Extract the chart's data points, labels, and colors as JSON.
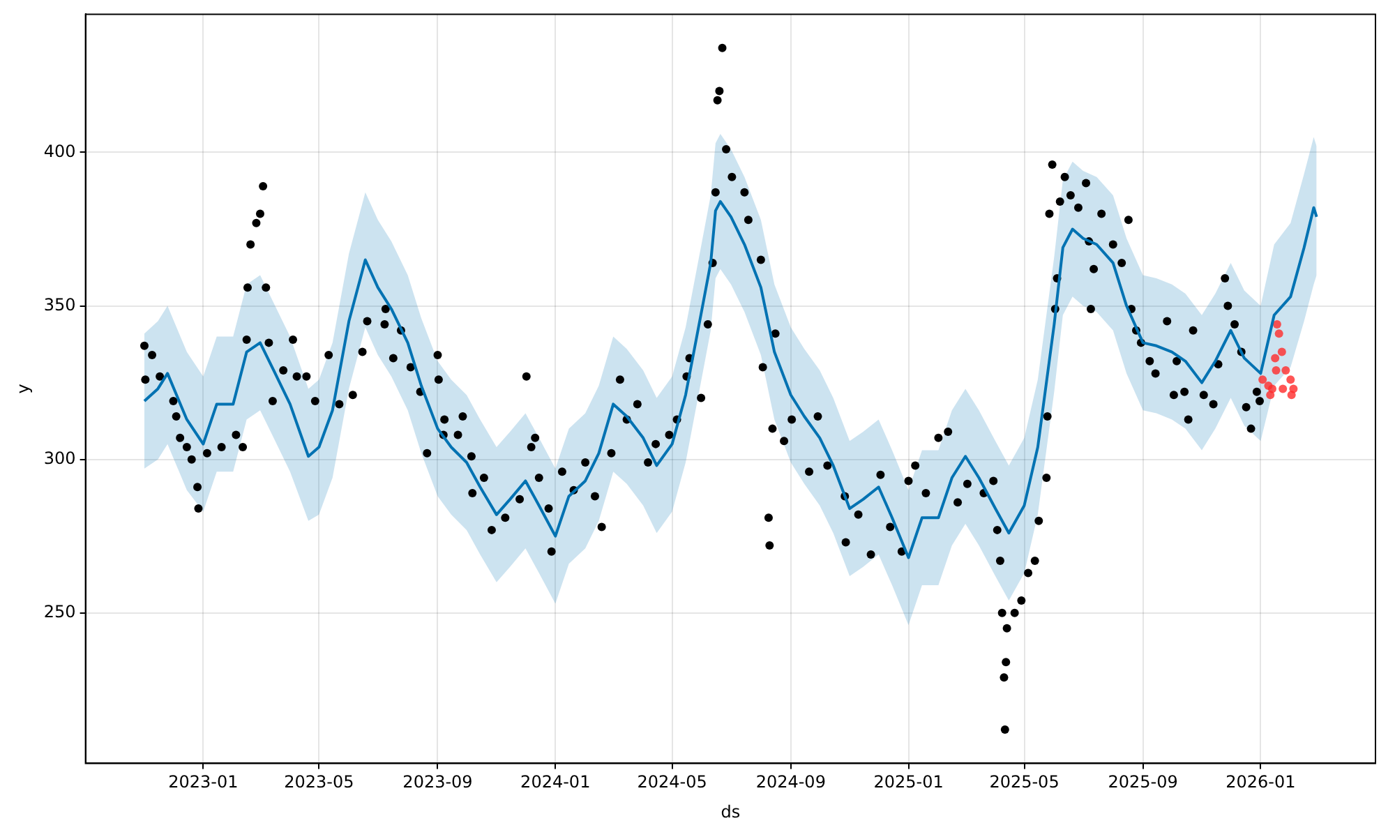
{
  "chart_data": {
    "type": "scatter",
    "xlabel": "ds",
    "ylabel": "y",
    "grid": true,
    "legend": false,
    "marker": "circle",
    "xlim": [
      "2022-09-01",
      "2026-04-30"
    ],
    "xticks": [
      "2023-01",
      "2023-05",
      "2023-09",
      "2024-01",
      "2024-05",
      "2024-09",
      "2025-01",
      "2025-05",
      "2025-09",
      "2026-01"
    ],
    "ylim": [
      201,
      445
    ],
    "yticks": [
      250,
      300,
      350,
      400
    ],
    "series": [
      {
        "type": "scatter",
        "color": "#000000",
        "x": [
          "2022-11-01",
          "2022-11-02",
          "2022-11-09",
          "2022-11-17",
          "2022-12-01",
          "2022-12-04",
          "2022-12-08",
          "2022-12-15",
          "2022-12-20",
          "2022-12-26",
          "2022-12-27",
          "2023-01-05",
          "2023-01-20",
          "2023-02-04",
          "2023-02-11",
          "2023-02-15",
          "2023-02-16",
          "2023-02-19",
          "2023-02-25",
          "2023-03-01",
          "2023-03-04",
          "2023-03-07",
          "2023-03-10",
          "2023-03-14",
          "2023-03-25",
          "2023-04-04",
          "2023-04-08",
          "2023-04-18",
          "2023-04-27",
          "2023-05-11",
          "2023-05-22",
          "2023-06-05",
          "2023-06-15",
          "2023-06-20",
          "2023-07-08",
          "2023-07-09",
          "2023-07-17",
          "2023-07-25",
          "2023-08-04",
          "2023-08-14",
          "2023-08-21",
          "2023-09-01",
          "2023-09-02",
          "2023-09-07",
          "2023-09-08",
          "2023-09-22",
          "2023-09-27",
          "2023-10-06",
          "2023-10-07",
          "2023-10-19",
          "2023-10-27",
          "2023-11-10",
          "2023-11-25",
          "2023-12-02",
          "2023-12-07",
          "2023-12-11",
          "2023-12-15",
          "2023-12-25",
          "2023-12-28",
          "2024-01-08",
          "2024-01-20",
          "2024-02-01",
          "2024-02-11",
          "2024-02-18",
          "2024-02-28",
          "2024-03-08",
          "2024-03-15",
          "2024-03-26",
          "2024-04-06",
          "2024-04-14",
          "2024-04-28",
          "2024-05-06",
          "2024-05-16",
          "2024-05-19",
          "2024-05-31",
          "2024-06-07",
          "2024-06-12",
          "2024-06-15",
          "2024-06-17",
          "2024-06-19",
          "2024-06-22",
          "2024-06-26",
          "2024-07-02",
          "2024-07-15",
          "2024-07-19",
          "2024-08-01",
          "2024-08-03",
          "2024-08-09",
          "2024-08-10",
          "2024-08-13",
          "2024-08-16",
          "2024-08-25",
          "2024-09-02",
          "2024-09-20",
          "2024-09-29",
          "2024-10-09",
          "2024-10-27",
          "2024-10-28",
          "2024-11-10",
          "2024-11-23",
          "2024-12-03",
          "2024-12-13",
          "2024-12-25",
          "2025-01-01",
          "2025-01-08",
          "2025-01-19",
          "2025-02-01",
          "2025-02-11",
          "2025-02-21",
          "2025-03-03",
          "2025-03-20",
          "2025-03-30",
          "2025-04-03",
          "2025-04-06",
          "2025-04-08",
          "2025-04-10",
          "2025-04-11",
          "2025-04-12",
          "2025-04-13",
          "2025-04-21",
          "2025-04-28",
          "2025-05-05",
          "2025-05-12",
          "2025-05-16",
          "2025-05-24",
          "2025-05-25",
          "2025-05-27",
          "2025-05-30",
          "2025-06-02",
          "2025-06-04",
          "2025-06-07",
          "2025-06-12",
          "2025-06-18",
          "2025-06-26",
          "2025-07-04",
          "2025-07-07",
          "2025-07-09",
          "2025-07-12",
          "2025-07-20",
          "2025-08-01",
          "2025-08-10",
          "2025-08-17",
          "2025-08-20",
          "2025-08-25",
          "2025-08-30",
          "2025-09-08",
          "2025-09-14",
          "2025-09-26",
          "2025-10-03",
          "2025-10-06",
          "2025-10-14",
          "2025-10-18",
          "2025-10-23",
          "2025-11-03",
          "2025-11-13",
          "2025-11-18",
          "2025-11-25",
          "2025-11-28",
          "2025-12-05",
          "2025-12-12",
          "2025-12-17",
          "2025-12-22",
          "2025-12-28",
          "2025-12-31"
        ],
        "values": [
          337,
          326,
          334,
          327,
          319,
          314,
          307,
          304,
          300,
          291,
          284,
          302,
          304,
          308,
          304,
          339,
          356,
          370,
          377,
          380,
          389,
          356,
          338,
          319,
          329,
          339,
          327,
          327,
          319,
          334,
          318,
          321,
          335,
          345,
          344,
          349,
          333,
          342,
          330,
          322,
          302,
          334,
          326,
          308,
          313,
          308,
          314,
          301,
          289,
          294,
          277,
          281,
          287,
          327,
          304,
          307,
          294,
          284,
          270,
          296,
          290,
          299,
          288,
          278,
          302,
          326,
          313,
          318,
          299,
          305,
          308,
          313,
          327,
          333,
          320,
          344,
          364,
          387,
          417,
          420,
          434,
          401,
          392,
          387,
          378,
          365,
          330,
          281,
          272,
          310,
          341,
          306,
          313,
          296,
          314,
          298,
          288,
          273,
          282,
          269,
          295,
          278,
          270,
          293,
          298,
          289,
          307,
          309,
          286,
          292,
          289,
          293,
          277,
          267,
          250,
          229,
          212,
          234,
          245,
          250,
          254,
          263,
          267,
          280,
          294,
          314,
          380,
          396,
          349,
          359,
          384,
          392,
          386,
          382,
          390,
          371,
          349,
          362,
          380,
          370,
          364,
          378,
          349,
          342,
          338,
          332,
          328,
          345,
          321,
          332,
          322,
          313,
          342,
          321,
          318,
          331,
          359,
          350,
          344,
          335,
          317,
          310,
          322,
          319
        ]
      },
      {
        "type": "scatter",
        "color": "#ff2a2a",
        "x": [
          "2026-01-03",
          "2026-01-09",
          "2026-01-11",
          "2026-01-13",
          "2026-01-16",
          "2026-01-17",
          "2026-01-18",
          "2026-01-20",
          "2026-01-23",
          "2026-01-24",
          "2026-01-27",
          "2026-02-01",
          "2026-02-02",
          "2026-02-04"
        ],
        "values": [
          326,
          324,
          321,
          323,
          333,
          329,
          344,
          341,
          335,
          323,
          329,
          326,
          321,
          323
        ]
      },
      {
        "type": "line",
        "color": "#0072b2",
        "marker": "none",
        "x": [
          "2022-11-01",
          "2022-11-15",
          "2022-11-25",
          "2022-12-15",
          "2023-01-01",
          "2023-01-15",
          "2023-02-01",
          "2023-02-15",
          "2023-03-01",
          "2023-03-15",
          "2023-04-01",
          "2023-04-20",
          "2023-05-01",
          "2023-05-15",
          "2023-06-01",
          "2023-06-18",
          "2023-07-01",
          "2023-07-15",
          "2023-08-01",
          "2023-08-15",
          "2023-09-01",
          "2023-09-15",
          "2023-10-01",
          "2023-10-15",
          "2023-11-01",
          "2023-11-15",
          "2023-12-01",
          "2023-12-15",
          "2024-01-01",
          "2024-01-15",
          "2024-02-01",
          "2024-02-15",
          "2024-03-01",
          "2024-03-15",
          "2024-04-01",
          "2024-04-15",
          "2024-05-01",
          "2024-05-15",
          "2024-06-01",
          "2024-06-10",
          "2024-06-15",
          "2024-06-20",
          "2024-07-01",
          "2024-07-15",
          "2024-08-01",
          "2024-08-15",
          "2024-09-01",
          "2024-09-15",
          "2024-10-01",
          "2024-10-15",
          "2024-11-01",
          "2024-11-15",
          "2024-12-01",
          "2024-12-15",
          "2025-01-01",
          "2025-01-15",
          "2025-02-01",
          "2025-02-15",
          "2025-03-01",
          "2025-03-15",
          "2025-04-01",
          "2025-04-15",
          "2025-05-01",
          "2025-05-15",
          "2025-06-01",
          "2025-06-10",
          "2025-06-20",
          "2025-07-01",
          "2025-07-15",
          "2025-08-01",
          "2025-08-15",
          "2025-09-01",
          "2025-09-15",
          "2025-10-01",
          "2025-10-15",
          "2025-11-01",
          "2025-11-15",
          "2025-12-01",
          "2025-12-15",
          "2026-01-01",
          "2026-01-15",
          "2026-02-01",
          "2026-02-15",
          "2026-02-25",
          "2026-02-28"
        ],
        "values": [
          319,
          323,
          328,
          313,
          305,
          318,
          318,
          335,
          338,
          329,
          318,
          301,
          304,
          316,
          345,
          365,
          356,
          349,
          338,
          324,
          310,
          304,
          299,
          291,
          282,
          287,
          293,
          285,
          275,
          288,
          293,
          302,
          318,
          314,
          307,
          298,
          305,
          321,
          349,
          364,
          381,
          384,
          379,
          370,
          356,
          335,
          321,
          314,
          307,
          298,
          284,
          287,
          291,
          281,
          268,
          281,
          281,
          294,
          301,
          294,
          284,
          276,
          285,
          304,
          344,
          369,
          375,
          372,
          370,
          364,
          350,
          338,
          337,
          335,
          332,
          325,
          332,
          342,
          333,
          328,
          347,
          353,
          369,
          382,
          379
        ],
        "lower": [
          297,
          300,
          305,
          290,
          283,
          296,
          296,
          313,
          316,
          307,
          296,
          280,
          282,
          294,
          323,
          343,
          334,
          327,
          316,
          302,
          288,
          282,
          277,
          269,
          260,
          265,
          271,
          263,
          253,
          266,
          271,
          280,
          296,
          292,
          285,
          276,
          283,
          299,
          327,
          342,
          359,
          362,
          357,
          348,
          334,
          313,
          299,
          292,
          285,
          276,
          262,
          265,
          269,
          259,
          246,
          259,
          259,
          272,
          279,
          272,
          262,
          254,
          263,
          282,
          322,
          347,
          353,
          350,
          348,
          342,
          328,
          316,
          315,
          313,
          310,
          303,
          310,
          320,
          311,
          306,
          324,
          330,
          345,
          357,
          360
        ],
        "upper": [
          341,
          345,
          350,
          335,
          327,
          340,
          340,
          357,
          360,
          351,
          340,
          323,
          326,
          338,
          367,
          387,
          378,
          371,
          360,
          346,
          332,
          326,
          321,
          313,
          304,
          309,
          315,
          307,
          297,
          310,
          315,
          324,
          340,
          336,
          329,
          320,
          327,
          343,
          371,
          386,
          403,
          406,
          401,
          392,
          378,
          357,
          343,
          336,
          329,
          320,
          306,
          309,
          313,
          303,
          290,
          303,
          303,
          316,
          323,
          316,
          306,
          298,
          307,
          326,
          366,
          391,
          397,
          394,
          392,
          386,
          372,
          360,
          359,
          357,
          354,
          347,
          354,
          364,
          355,
          350,
          370,
          377,
          393,
          405,
          402
        ]
      }
    ]
  }
}
